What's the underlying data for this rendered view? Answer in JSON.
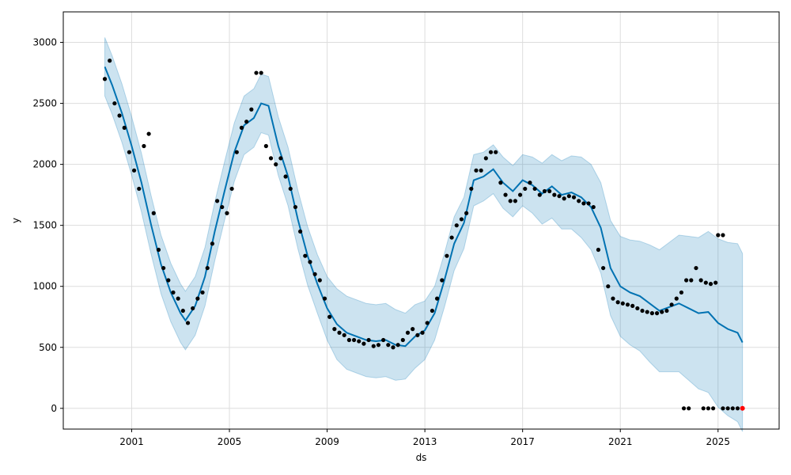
{
  "chart_data": {
    "type": "line",
    "title": "",
    "xlabel": "ds",
    "ylabel": "y",
    "x_ticks": [
      "2001",
      "2005",
      "2009",
      "2013",
      "2017",
      "2021",
      "2025"
    ],
    "y_ticks": [
      "0",
      "500",
      "1000",
      "1500",
      "2000",
      "2500",
      "3000"
    ],
    "xlim": [
      1998.2,
      2027.5
    ],
    "ylim": [
      -170,
      3250
    ],
    "grid": true,
    "colors": {
      "observed": "#000000",
      "forecast_line": "#0072B2",
      "uncertainty_band": "#0072B2",
      "highlight_point": "#ff0000"
    },
    "series": [
      {
        "role": "forecast",
        "x": [
          1999.9,
          2000.2,
          2000.6,
          2001.0,
          2001.4,
          2001.8,
          2002.2,
          2002.6,
          2003.0,
          2003.2,
          2003.6,
          2004.0,
          2004.4,
          2004.8,
          2005.2,
          2005.6,
          2006.0,
          2006.3,
          2006.6,
          2007.0,
          2007.4,
          2007.8,
          2008.2,
          2008.6,
          2009.0,
          2009.4,
          2009.8,
          2010.2,
          2010.6,
          2011.0,
          2011.4,
          2011.8,
          2012.2,
          2012.6,
          2013.0,
          2013.4,
          2013.8,
          2014.2,
          2014.6,
          2015.0,
          2015.4,
          2015.8,
          2016.2,
          2016.6,
          2017.0,
          2017.4,
          2017.8,
          2018.2,
          2018.6,
          2019.0,
          2019.4,
          2019.8,
          2020.2,
          2020.6,
          2021.0,
          2021.4,
          2021.8,
          2022.2,
          2022.6,
          2023.0,
          2023.4,
          2023.8,
          2024.2,
          2024.6,
          2025.0,
          2025.4,
          2025.8,
          2026.0
        ],
        "yhat": [
          2800,
          2650,
          2420,
          2150,
          1850,
          1500,
          1180,
          950,
          780,
          720,
          840,
          1080,
          1450,
          1780,
          2100,
          2320,
          2380,
          2500,
          2480,
          2150,
          1900,
          1550,
          1250,
          1020,
          820,
          690,
          620,
          590,
          560,
          550,
          560,
          520,
          510,
          590,
          640,
          780,
          1050,
          1350,
          1520,
          1870,
          1900,
          1960,
          1850,
          1780,
          1870,
          1830,
          1760,
          1820,
          1750,
          1770,
          1730,
          1650,
          1480,
          1150,
          1000,
          950,
          920,
          860,
          800,
          830,
          860,
          820,
          780,
          790,
          700,
          650,
          620,
          540
        ],
        "yhat_lower": [
          2560,
          2410,
          2180,
          1910,
          1610,
          1260,
          940,
          710,
          540,
          480,
          600,
          840,
          1210,
          1540,
          1860,
          2080,
          2140,
          2260,
          2240,
          1910,
          1660,
          1310,
          1010,
          780,
          560,
          400,
          320,
          290,
          260,
          250,
          260,
          230,
          240,
          330,
          400,
          560,
          830,
          1130,
          1310,
          1660,
          1700,
          1760,
          1640,
          1570,
          1660,
          1600,
          1510,
          1560,
          1470,
          1470,
          1400,
          1300,
          1110,
          760,
          590,
          520,
          470,
          380,
          300,
          300,
          300,
          230,
          160,
          130,
          10,
          -60,
          -110,
          -190
        ],
        "yhat_upper": [
          3040,
          2890,
          2660,
          2390,
          2090,
          1740,
          1420,
          1190,
          1020,
          960,
          1080,
          1320,
          1690,
          2020,
          2340,
          2560,
          2620,
          2740,
          2720,
          2390,
          2140,
          1790,
          1490,
          1260,
          1080,
          980,
          920,
          890,
          860,
          850,
          860,
          810,
          780,
          850,
          880,
          1000,
          1270,
          1570,
          1730,
          2080,
          2100,
          2160,
          2060,
          1990,
          2080,
          2060,
          2010,
          2080,
          2030,
          2070,
          2060,
          2000,
          1850,
          1540,
          1410,
          1380,
          1370,
          1340,
          1300,
          1360,
          1420,
          1410,
          1400,
          1450,
          1390,
          1360,
          1350,
          1270
        ]
      },
      {
        "role": "observed",
        "x": [
          1999.9,
          2000.1,
          2000.3,
          2000.5,
          2000.7,
          2000.9,
          2001.1,
          2001.3,
          2001.5,
          2001.7,
          2001.9,
          2002.1,
          2002.3,
          2002.5,
          2002.7,
          2002.9,
          2003.1,
          2003.3,
          2003.5,
          2003.7,
          2003.9,
          2004.1,
          2004.3,
          2004.5,
          2004.7,
          2004.9,
          2005.1,
          2005.3,
          2005.5,
          2005.7,
          2005.9,
          2006.1,
          2006.3,
          2006.5,
          2006.7,
          2006.9,
          2007.1,
          2007.3,
          2007.5,
          2007.7,
          2007.9,
          2008.1,
          2008.3,
          2008.5,
          2008.7,
          2008.9,
          2009.1,
          2009.3,
          2009.5,
          2009.7,
          2009.9,
          2010.1,
          2010.3,
          2010.5,
          2010.7,
          2010.9,
          2011.1,
          2011.3,
          2011.5,
          2011.7,
          2011.9,
          2012.1,
          2012.3,
          2012.5,
          2012.7,
          2012.9,
          2013.1,
          2013.3,
          2013.5,
          2013.7,
          2013.9,
          2014.1,
          2014.3,
          2014.5,
          2014.7,
          2014.9,
          2015.1,
          2015.3,
          2015.5,
          2015.7,
          2015.9,
          2016.1,
          2016.3,
          2016.5,
          2016.7,
          2016.9,
          2017.1,
          2017.3,
          2017.5,
          2017.7,
          2017.9,
          2018.1,
          2018.3,
          2018.5,
          2018.7,
          2018.9,
          2019.1,
          2019.3,
          2019.5,
          2019.7,
          2019.9,
          2020.1,
          2020.3,
          2020.5,
          2020.7,
          2020.9,
          2021.1,
          2021.3,
          2021.5,
          2021.7,
          2021.9,
          2022.1,
          2022.3,
          2022.5,
          2022.7,
          2022.9,
          2023.1,
          2023.3,
          2023.5,
          2023.7,
          2023.9,
          2024.1,
          2024.3,
          2024.5,
          2024.7,
          2024.9,
          2025.0,
          2025.2
        ],
        "y": [
          2700,
          2850,
          2500,
          2400,
          2300,
          2100,
          1950,
          1800,
          2150,
          2250,
          1600,
          1300,
          1150,
          1050,
          950,
          900,
          800,
          700,
          820,
          900,
          950,
          1150,
          1350,
          1700,
          1650,
          1600,
          1800,
          2100,
          2300,
          2350,
          2450,
          2750,
          2750,
          2150,
          2050,
          2000,
          2050,
          1900,
          1800,
          1650,
          1450,
          1250,
          1200,
          1100,
          1050,
          900,
          750,
          650,
          620,
          600,
          560,
          560,
          550,
          530,
          560,
          510,
          520,
          560,
          520,
          500,
          520,
          560,
          620,
          650,
          600,
          620,
          700,
          800,
          900,
          1050,
          1250,
          1400,
          1500,
          1550,
          1600,
          1800,
          1950,
          1950,
          2050,
          2100,
          2100,
          1850,
          1750,
          1700,
          1700,
          1750,
          1800,
          1850,
          1800,
          1750,
          1780,
          1780,
          1750,
          1740,
          1720,
          1740,
          1730,
          1700,
          1680,
          1680,
          1650,
          1300,
          1150,
          1000,
          900,
          870,
          860,
          850,
          840,
          820,
          800,
          790,
          780,
          780,
          790,
          800,
          850,
          900,
          950,
          1050,
          1050,
          1150,
          1050,
          1030,
          1020,
          1030,
          1420,
          1420
        ]
      },
      {
        "role": "zero-values",
        "x": [
          2023.6,
          2023.8,
          2024.4,
          2024.6,
          2024.8,
          2025.2,
          2025.4,
          2025.6,
          2025.8
        ],
        "y": [
          0,
          0,
          0,
          0,
          0,
          0,
          0,
          0,
          0
        ]
      },
      {
        "role": "highlight",
        "x": [
          2026.0
        ],
        "y": [
          0
        ]
      }
    ]
  }
}
